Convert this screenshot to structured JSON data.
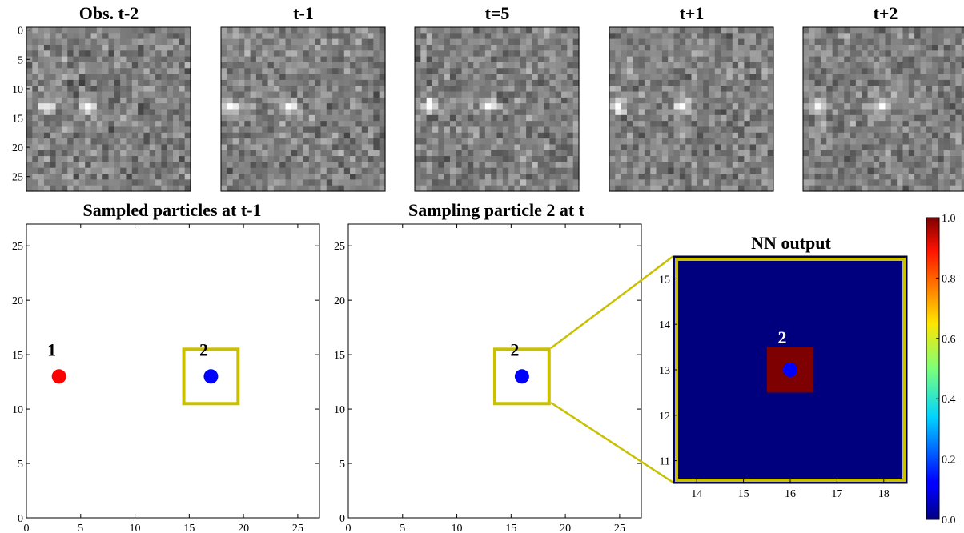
{
  "chart_data": [
    {
      "type": "heatmap",
      "title": "Obs. t-2",
      "description": "noisy 28x28 grayscale frame with two bright blobs near rows 13",
      "ylim": [
        0,
        27
      ],
      "yticks": [
        "0",
        "5",
        "10",
        "15",
        "20",
        "25"
      ],
      "blobs": [
        {
          "x": 3,
          "y": 13
        },
        {
          "x": 10,
          "y": 13
        }
      ]
    },
    {
      "type": "heatmap",
      "title": "t-1",
      "blobs": [
        {
          "x": 1,
          "y": 13
        },
        {
          "x": 11,
          "y": 13
        }
      ]
    },
    {
      "type": "heatmap",
      "title": "t=5",
      "blobs": [
        {
          "x": 2,
          "y": 13
        },
        {
          "x": 12,
          "y": 13
        }
      ]
    },
    {
      "type": "heatmap",
      "title": "t+1",
      "blobs": [
        {
          "x": 1,
          "y": 13
        },
        {
          "x": 12,
          "y": 13
        }
      ]
    },
    {
      "type": "heatmap",
      "title": "t+2",
      "blobs": [
        {
          "x": 2,
          "y": 13
        },
        {
          "x": 13,
          "y": 13
        }
      ]
    },
    {
      "type": "scatter",
      "title": "Sampled particles at t-1",
      "xlim": [
        0,
        27
      ],
      "ylim": [
        0,
        27
      ],
      "xticks": [
        "0",
        "5",
        "10",
        "15",
        "20",
        "25"
      ],
      "yticks": [
        "0",
        "5",
        "10",
        "15",
        "20",
        "25"
      ],
      "points": [
        {
          "label": "1",
          "x": 3,
          "y": 13,
          "color": "#ff0000"
        },
        {
          "label": "2",
          "x": 17,
          "y": 13,
          "color": "#0000ff"
        }
      ],
      "box": {
        "x0": 14.5,
        "x1": 19.5,
        "y0": 10.5,
        "y1": 15.5,
        "color": "#c8c000"
      }
    },
    {
      "type": "scatter",
      "title": "Sampling particle 2 at t",
      "xlim": [
        0,
        27
      ],
      "ylim": [
        0,
        27
      ],
      "xticks": [
        "0",
        "5",
        "10",
        "15",
        "20",
        "25"
      ],
      "yticks": [
        "0",
        "5",
        "10",
        "15",
        "20",
        "25"
      ],
      "points": [
        {
          "label": "2",
          "x": 16,
          "y": 13,
          "color": "#0000ff"
        }
      ],
      "box": {
        "x0": 13.5,
        "x1": 18.5,
        "y0": 10.5,
        "y1": 15.5,
        "color": "#c8c000"
      }
    },
    {
      "type": "heatmap",
      "title": "NN output",
      "xlim": [
        13.5,
        18.5
      ],
      "ylim": [
        10.5,
        15.5
      ],
      "xticks": [
        "14",
        "15",
        "16",
        "17",
        "18"
      ],
      "yticks": [
        "11",
        "12",
        "13",
        "14",
        "15"
      ],
      "background_value": 0.0,
      "hot_cell": {
        "x": 16,
        "y": 13,
        "value": 1.0
      },
      "point": {
        "label": "2",
        "x": 16,
        "y": 13,
        "color": "#0000ff"
      },
      "colorbar": {
        "range": [
          0.0,
          1.0
        ],
        "ticks": [
          "0.0",
          "0.2",
          "0.4",
          "0.6",
          "0.8",
          "1.0"
        ],
        "colormap": "jet"
      }
    }
  ],
  "colors": {
    "box": "#c8c000",
    "jet_low": "#00007f",
    "jet_high": "#7f0000",
    "particle_1": "#ff0000",
    "particle_2": "#0000ff"
  }
}
